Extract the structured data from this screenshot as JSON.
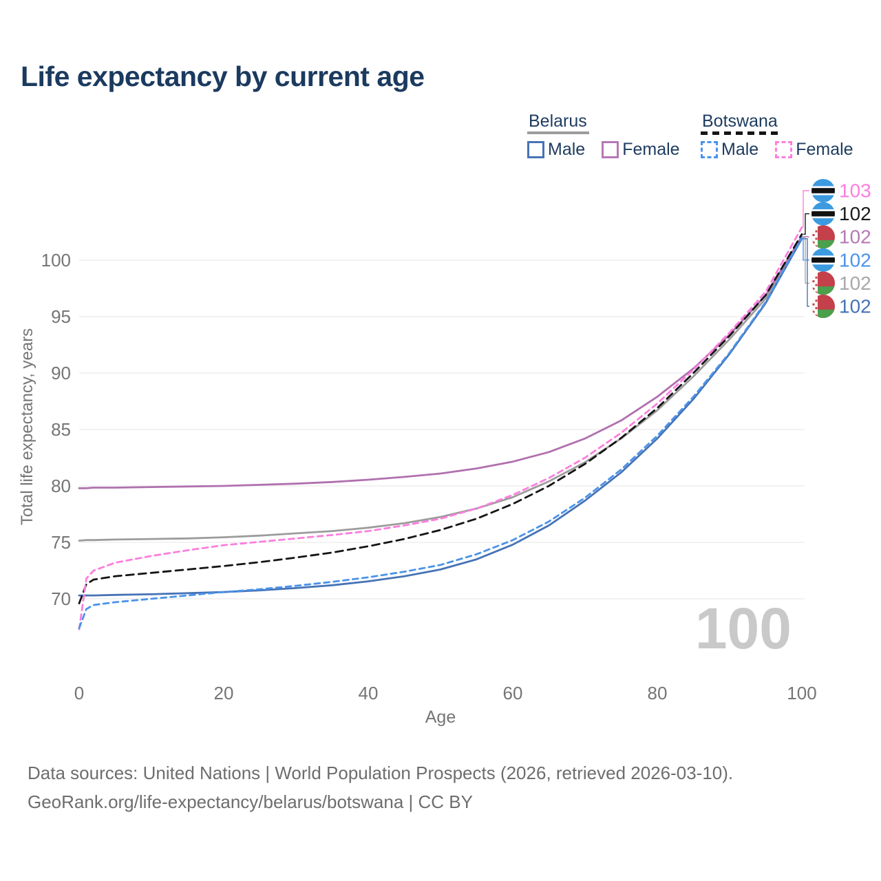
{
  "title": "Life expectancy by current age",
  "legend": {
    "groups": [
      {
        "country": "Belarus",
        "line_style": "solid",
        "line_color": "#9c9c9c",
        "items": [
          {
            "label": "Male",
            "color": "#4673b5",
            "box_style": "solid"
          },
          {
            "label": "Female",
            "color": "#b678b6",
            "box_style": "solid"
          }
        ]
      },
      {
        "country": "Botswana",
        "line_style": "dashed",
        "line_color": "#151515",
        "items": [
          {
            "label": "Male",
            "color": "#4b93ea",
            "box_style": "dashed"
          },
          {
            "label": "Female",
            "color": "#fc7ede",
            "box_style": "dashed"
          }
        ]
      }
    ]
  },
  "axes": {
    "x_label": "Age",
    "y_label": "Total life expectancy, years",
    "x_ticks": [
      0,
      20,
      40,
      60,
      80,
      100
    ],
    "y_ticks": [
      70,
      75,
      80,
      85,
      90,
      95,
      100
    ],
    "tick_color": "#757575",
    "grid_color": "#e9e9e9"
  },
  "watermark": "100",
  "footer": {
    "line1": "Data sources: United Nations | World Population Prospects (2026, retrieved 2026-03-10).",
    "line2": "GeoRank.org/life-expectancy/belarus/botswana | CC BY"
  },
  "chart_data": {
    "type": "line",
    "title": "Life expectancy by current age",
    "xlabel": "Age",
    "ylabel": "Total life expectancy, years",
    "xlim": [
      0,
      100
    ],
    "ylim": [
      67,
      103.5
    ],
    "grid": true,
    "x": [
      0,
      1,
      2,
      5,
      10,
      15,
      20,
      25,
      30,
      35,
      40,
      45,
      50,
      55,
      60,
      65,
      70,
      75,
      80,
      85,
      90,
      95,
      100
    ],
    "series": [
      {
        "name": "Belarus Both sexes",
        "country": "Belarus",
        "sex": "Both",
        "color": "#9c9c9c",
        "dash": "solid",
        "end_label": "102",
        "end_label_color": "#a8a8a8",
        "values": [
          75.15,
          75.2,
          75.2,
          75.25,
          75.3,
          75.35,
          75.45,
          75.6,
          75.8,
          76.0,
          76.3,
          76.7,
          77.25,
          78.0,
          79.0,
          80.4,
          82.1,
          84.2,
          86.7,
          89.7,
          93.0,
          96.6,
          102.0
        ]
      },
      {
        "name": "Belarus Female",
        "country": "Belarus",
        "sex": "Female",
        "color": "#b070ae",
        "dash": "solid",
        "end_label": "102",
        "end_label_color": "#b679b4",
        "values": [
          79.8,
          79.8,
          79.85,
          79.85,
          79.9,
          79.95,
          80.0,
          80.1,
          80.2,
          80.35,
          80.55,
          80.8,
          81.1,
          81.55,
          82.15,
          83.0,
          84.2,
          85.8,
          87.9,
          90.4,
          93.4,
          96.9,
          102.1
        ]
      },
      {
        "name": "Belarus Male",
        "country": "Belarus",
        "sex": "Male",
        "color": "#4673b5",
        "dash": "solid",
        "end_label": "102",
        "end_label_color": "#4673b5",
        "values": [
          70.3,
          70.3,
          70.3,
          70.35,
          70.4,
          70.5,
          70.6,
          70.75,
          70.95,
          71.2,
          71.55,
          72.0,
          72.6,
          73.5,
          74.8,
          76.5,
          78.7,
          81.2,
          84.2,
          87.7,
          91.7,
          96.2,
          101.9
        ]
      },
      {
        "name": "Botswana Both sexes",
        "country": "Botswana",
        "sex": "Both",
        "color": "#151515",
        "dash": "dashed",
        "end_label": "102",
        "end_label_color": "#1c1c1c",
        "values": [
          69.6,
          71.3,
          71.7,
          72.0,
          72.3,
          72.6,
          72.9,
          73.25,
          73.65,
          74.1,
          74.65,
          75.3,
          76.1,
          77.1,
          78.4,
          80.0,
          81.95,
          84.25,
          86.9,
          90.0,
          93.3,
          96.9,
          102.3
        ]
      },
      {
        "name": "Botswana Female",
        "country": "Botswana",
        "sex": "Female",
        "color": "#fc7ede",
        "dash": "dashed",
        "end_label": "103",
        "end_label_color": "#fc7ede",
        "values": [
          67.3,
          71.8,
          72.5,
          73.2,
          73.8,
          74.3,
          74.75,
          75.05,
          75.35,
          75.65,
          76.0,
          76.5,
          77.1,
          78.0,
          79.2,
          80.7,
          82.5,
          84.7,
          87.3,
          90.3,
          93.6,
          97.2,
          102.9
        ]
      },
      {
        "name": "Botswana Male",
        "country": "Botswana",
        "sex": "Male",
        "color": "#4b93ea",
        "dash": "dashed",
        "end_label": "102",
        "end_label_color": "#4b93ea",
        "values": [
          67.4,
          69.1,
          69.45,
          69.7,
          70.0,
          70.3,
          70.6,
          70.85,
          71.15,
          71.5,
          71.9,
          72.4,
          73.0,
          73.95,
          75.2,
          76.85,
          78.95,
          81.45,
          84.45,
          87.9,
          91.8,
          96.3,
          102.0
        ]
      }
    ],
    "end_label_order": [
      "Botswana Female",
      "Botswana Both sexes",
      "Belarus Female",
      "Botswana Male",
      "Belarus Both sexes",
      "Belarus Male"
    ],
    "legend_position": "top-right"
  },
  "flags": {
    "botswana": {
      "blue": "#3c9be0",
      "black": "#111111",
      "white": "#ffffff"
    },
    "belarus": {
      "red": "#c4404a",
      "green": "#4ba04b",
      "white": "#ffffff"
    }
  }
}
